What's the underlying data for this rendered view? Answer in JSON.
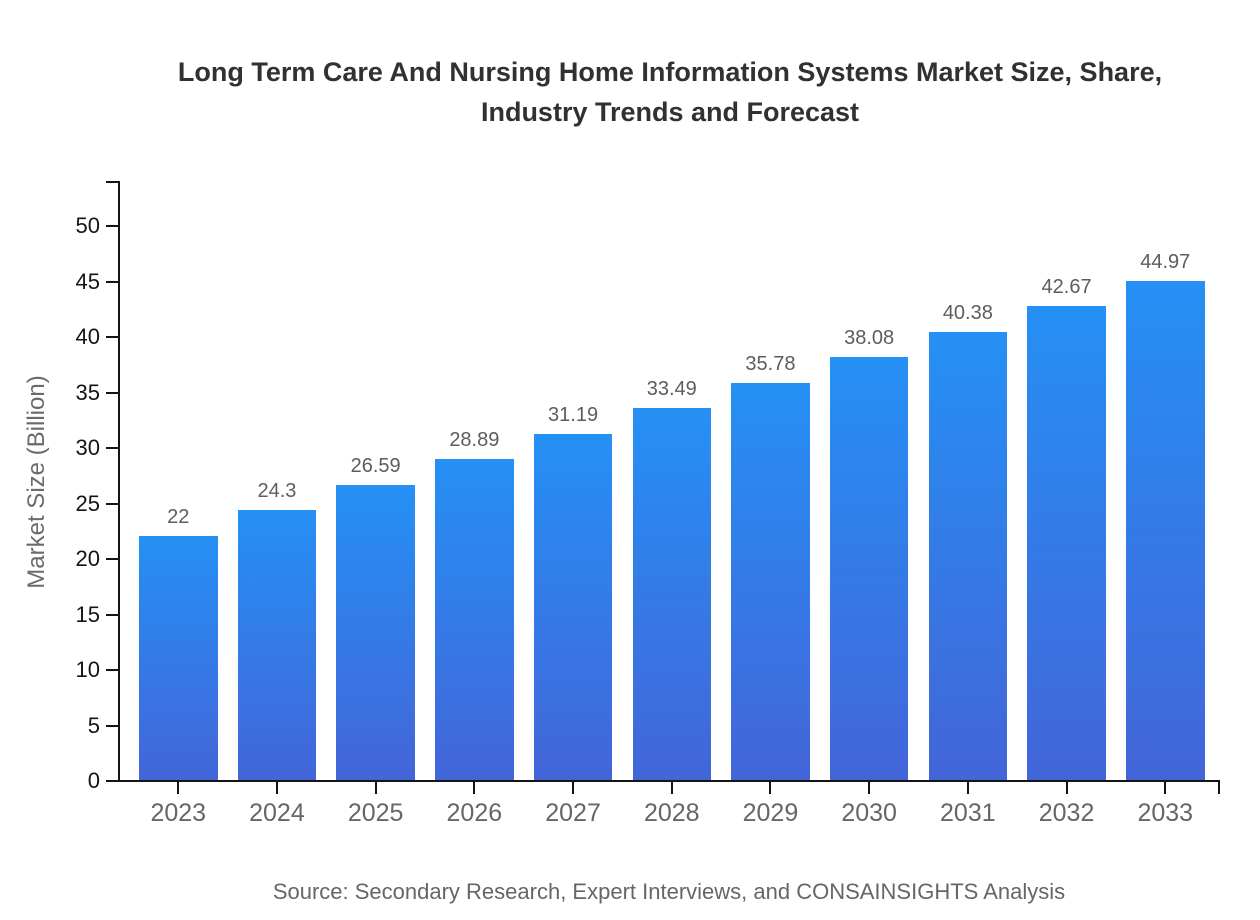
{
  "title": {
    "line1": "Long Term Care And Nursing Home Information Systems Market Size, Share,",
    "line2": "Industry Trends and Forecast"
  },
  "chart_data": {
    "type": "bar",
    "title": "Long Term Care And Nursing Home Information Systems Market Size, Share, Industry Trends and Forecast",
    "categories": [
      "2023",
      "2024",
      "2025",
      "2026",
      "2027",
      "2028",
      "2029",
      "2030",
      "2031",
      "2032",
      "2033"
    ],
    "values": [
      22,
      24.3,
      26.59,
      28.89,
      31.19,
      33.49,
      35.78,
      38.08,
      40.38,
      42.67,
      44.97
    ],
    "value_labels": [
      "22",
      "24.3",
      "26.59",
      "28.89",
      "31.19",
      "33.49",
      "35.78",
      "38.08",
      "40.38",
      "42.67",
      "44.97"
    ],
    "xlabel": "",
    "ylabel": "Market Size (Billion)",
    "ylim": [
      0,
      50
    ],
    "ytick_step": 5,
    "ytick_labels": [
      "0",
      "5",
      "10",
      "15",
      "20",
      "25",
      "30",
      "35",
      "40",
      "45",
      "50"
    ],
    "grid": false,
    "legend": false,
    "bar_gradient_top": "#2590f5",
    "bar_gradient_bottom": "#4365d8",
    "axis_color": "#141414",
    "value_label_color": "#5d5d5d",
    "xtick_label_color": "#666666",
    "ytick_label_color": "#141414"
  },
  "source_note": "Source: Secondary Research, Expert Interviews, and CONSAINSIGHTS Analysis"
}
